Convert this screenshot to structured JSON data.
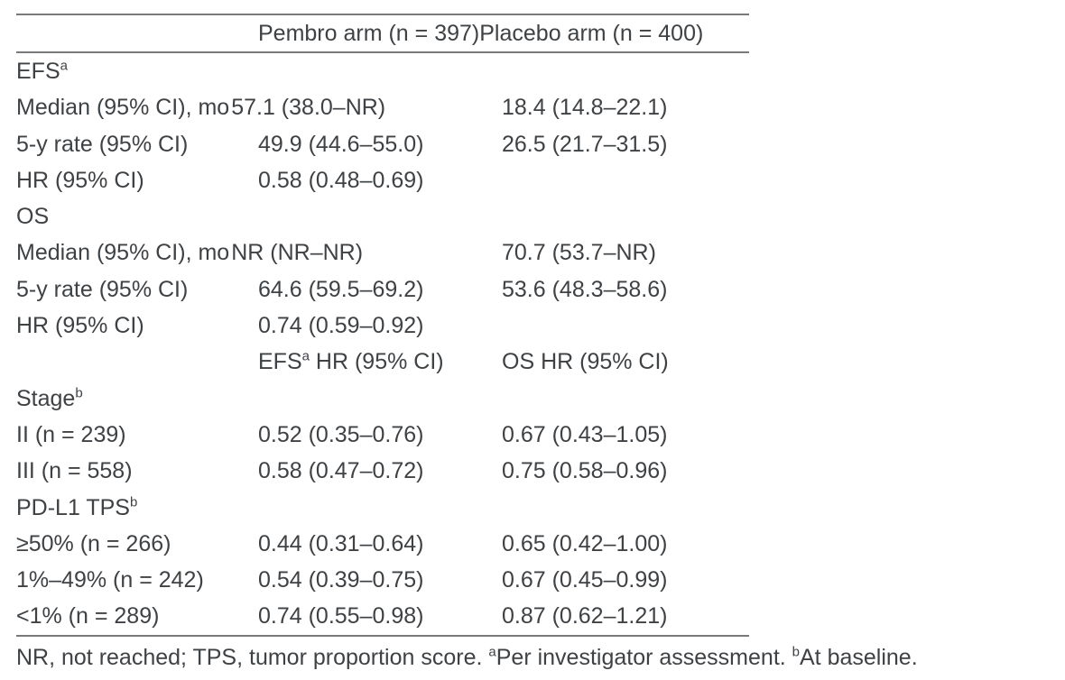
{
  "header": {
    "col2": "Pembro arm (n = 397)",
    "col3": "Placebo arm (n = 400)"
  },
  "rows": [
    {
      "type": "section",
      "label": "EFS",
      "sup": "a"
    },
    {
      "type": "tight",
      "label": "Median (95% CI), mo",
      "pembro": "57.1 (38.0–NR)",
      "placebo": "18.4 (14.8–22.1)"
    },
    {
      "type": "data",
      "label": "5-y rate (95% CI)",
      "pembro": "49.9 (44.6–55.0)",
      "placebo": "26.5 (21.7–31.5)"
    },
    {
      "type": "data",
      "label": "HR (95% CI)",
      "pembro": "0.58 (0.48–0.69)",
      "placebo": ""
    },
    {
      "type": "section",
      "label": "OS",
      "sup": ""
    },
    {
      "type": "tight",
      "label": "Median (95% CI), mo",
      "pembro": "NR (NR–NR)",
      "placebo": "70.7 (53.7–NR)"
    },
    {
      "type": "data",
      "label": "5-y rate (95% CI)",
      "pembro": "64.6 (59.5–69.2)",
      "placebo": "53.6 (48.3–58.6)"
    },
    {
      "type": "data",
      "label": "HR (95% CI)",
      "pembro": "0.74 (0.59–0.92)",
      "placebo": ""
    },
    {
      "type": "midheader",
      "col2_text": "EFS",
      "col2_sup": "a",
      "col2_rest": " HR (95% CI)",
      "col3": "OS HR (95% CI)"
    },
    {
      "type": "section",
      "label": "Stage",
      "sup": "b"
    },
    {
      "type": "data",
      "label": "II (n = 239)",
      "pembro": "0.52 (0.35–0.76)",
      "placebo": "0.67 (0.43–1.05)"
    },
    {
      "type": "data",
      "label": "III (n = 558)",
      "pembro": "0.58 (0.47–0.72)",
      "placebo": "0.75 (0.58–0.96)"
    },
    {
      "type": "section",
      "label": "PD-L1 TPS",
      "sup": "b"
    },
    {
      "type": "data",
      "label": "≥50% (n = 266)",
      "pembro": "0.44 (0.31–0.64)",
      "placebo": "0.65 (0.42–1.00)"
    },
    {
      "type": "data",
      "label": "1%–49% (n = 242)",
      "pembro": "0.54 (0.39–0.75)",
      "placebo": "0.67 (0.45–0.99)"
    },
    {
      "type": "data",
      "label": "<1% (n = 289)",
      "pembro": "0.74 (0.55–0.98)",
      "placebo": "0.87 (0.62–1.21)"
    }
  ],
  "footnote": {
    "parts": [
      {
        "text": "NR, not reached; TPS, tumor proportion score. "
      },
      {
        "sup": "a"
      },
      {
        "text": "Per investigator assessment. "
      },
      {
        "sup": "b"
      },
      {
        "text": "At baseline."
      }
    ]
  },
  "colors": {
    "text": "#3f4245",
    "rule": "#77797b",
    "background": "#ffffff"
  }
}
